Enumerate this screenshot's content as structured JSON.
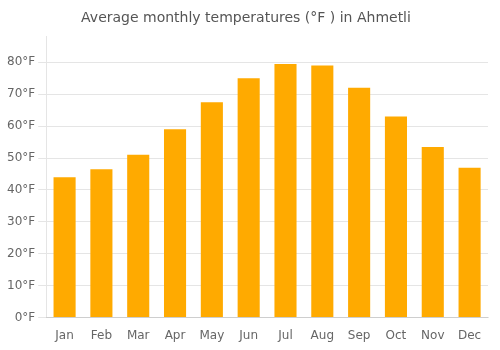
{
  "chart_data": {
    "type": "bar",
    "title": "Average monthly temperatures (°F ) in Ahmetli",
    "categories": [
      "Jan",
      "Feb",
      "Mar",
      "Apr",
      "May",
      "Jun",
      "Jul",
      "Aug",
      "Sep",
      "Oct",
      "Nov",
      "Dec"
    ],
    "values": [
      44,
      46.5,
      51,
      59,
      67.5,
      75,
      79.5,
      79,
      72,
      63,
      53.5,
      47
    ],
    "color": "#FFAA00",
    "ylim": [
      0,
      88
    ],
    "yticks": [
      {
        "value": 0,
        "label": "0°F"
      },
      {
        "value": 10,
        "label": "10°F"
      },
      {
        "value": 20,
        "label": "20°F"
      },
      {
        "value": 30,
        "label": "30°F"
      },
      {
        "value": 40,
        "label": "40°F"
      },
      {
        "value": 50,
        "label": "50°F"
      },
      {
        "value": 60,
        "label": "60°F"
      },
      {
        "value": 70,
        "label": "70°F"
      },
      {
        "value": 80,
        "label": "80°F"
      }
    ],
    "grid": true
  }
}
